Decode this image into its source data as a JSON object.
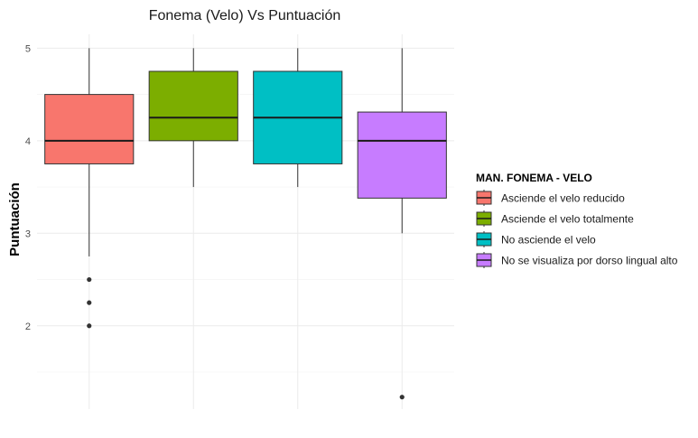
{
  "chart_data": {
    "type": "boxplot",
    "title": "Fonema (Velo) Vs Puntuación",
    "xlabel": "",
    "ylabel": "Puntuación",
    "ylim": [
      1.1,
      5.15
    ],
    "yticks": [
      2,
      3,
      4,
      5
    ],
    "ytick_labels": [
      "2",
      "3",
      "4",
      "5"
    ],
    "grid": true,
    "legend": {
      "title": "MAN. FONEMA - VELO",
      "position": "right"
    },
    "series": [
      {
        "name": "Asciende el velo reducido",
        "color": "#F8766D",
        "lower_whisker": 2.75,
        "q1": 3.75,
        "median": 4.0,
        "q3": 4.5,
        "upper_whisker": 5.0,
        "outliers": [
          2.5,
          2.25,
          2.0
        ]
      },
      {
        "name": "Asciende el velo totalmente",
        "color": "#7CAE00",
        "lower_whisker": 3.5,
        "q1": 4.0,
        "median": 4.25,
        "q3": 4.75,
        "upper_whisker": 5.0,
        "outliers": []
      },
      {
        "name": "No asciende el velo",
        "color": "#00BFC4",
        "lower_whisker": 3.5,
        "q1": 3.75,
        "median": 4.25,
        "q3": 4.75,
        "upper_whisker": 5.0,
        "outliers": []
      },
      {
        "name": "No se visualiza por dorso lingual alto",
        "color": "#C77CFF",
        "lower_whisker": 3.0,
        "q1": 3.38,
        "median": 4.0,
        "q3": 4.31,
        "upper_whisker": 5.0,
        "outliers": [
          1.23
        ]
      }
    ]
  }
}
